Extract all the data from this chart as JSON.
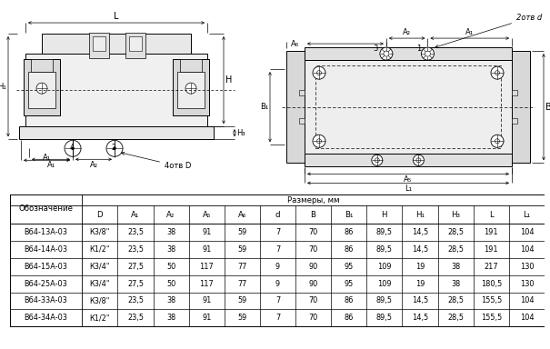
{
  "table_header_top": "Размеры, мм",
  "table_col1": "Обозначение",
  "table_cols": [
    "D",
    "A₁",
    "A₂",
    "A₅",
    "A₆",
    "d",
    "B",
    "B₁",
    "H",
    "H₁",
    "H₃",
    "L",
    "L₁"
  ],
  "table_rows": [
    [
      "В64-13А-03",
      "К3/8\"",
      "23,5",
      "38",
      "91",
      "59",
      "7",
      "70",
      "86",
      "89,5",
      "14,5",
      "28,5",
      "191",
      "104"
    ],
    [
      "В64-14А-03",
      "К1/2\"",
      "23,5",
      "38",
      "91",
      "59",
      "7",
      "70",
      "86",
      "89,5",
      "14,5",
      "28,5",
      "191",
      "104"
    ],
    [
      "В64-15А-03",
      "К3/4\"",
      "27,5",
      "50",
      "117",
      "77",
      "9",
      "90",
      "95",
      "109",
      "19",
      "38",
      "217",
      "130"
    ],
    [
      "В64-25А-03",
      "К3/4\"",
      "27,5",
      "50",
      "117",
      "77",
      "9",
      "90",
      "95",
      "109",
      "19",
      "38",
      "180,5",
      "130"
    ],
    [
      "В64-33А-03",
      "К3/8\"",
      "23,5",
      "38",
      "91",
      "59",
      "7",
      "70",
      "86",
      "89,5",
      "14,5",
      "28,5",
      "155,5",
      "104"
    ],
    [
      "В64-34А-03",
      "К1/2\"",
      "23,5",
      "38",
      "91",
      "59",
      "7",
      "70",
      "86",
      "89,5",
      "14,5",
      "28,5",
      "155,5",
      "104"
    ]
  ],
  "bg_color": "#ffffff",
  "line_color": "#000000",
  "text_color": "#000000"
}
